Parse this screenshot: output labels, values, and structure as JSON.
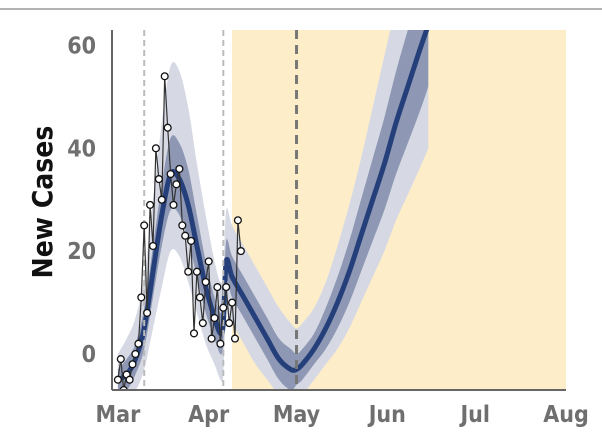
{
  "chart_data": {
    "type": "line",
    "title": "",
    "xlabel": "",
    "ylabel": "New Cases",
    "x_ticks": [
      "Mar",
      "Apr",
      "May",
      "Jun",
      "Jul",
      "Aug"
    ],
    "x_tick_dates": [
      "2020-03-01",
      "2020-04-01",
      "2020-05-01",
      "2020-06-01",
      "2020-07-01",
      "2020-08-01"
    ],
    "y_ticks": [
      0,
      20,
      40,
      60
    ],
    "xlim": [
      "2020-02-28",
      "2020-08-01"
    ],
    "ylim": [
      -7,
      63
    ],
    "grid": false,
    "colors": {
      "fit_line": "#243f7a",
      "inner_band": "#8e98b4",
      "outer_band": "#d6d9e4",
      "forecast_region": "#fdedc9",
      "observed_points": "#ffffff",
      "observed_line": "#333333",
      "event_lines": "#bbbbbb",
      "today_line": "#777777"
    },
    "forecast_region": {
      "start": "2020-04-09",
      "end": "2020-08-01"
    },
    "event_lines": [
      "2020-03-10",
      "2020-04-06"
    ],
    "today_line": "2020-05-01",
    "observed": {
      "x": [
        "2020-03-01",
        "2020-03-02",
        "2020-03-03",
        "2020-03-04",
        "2020-03-05",
        "2020-03-06",
        "2020-03-07",
        "2020-03-08",
        "2020-03-09",
        "2020-03-10",
        "2020-03-11",
        "2020-03-12",
        "2020-03-13",
        "2020-03-14",
        "2020-03-15",
        "2020-03-16",
        "2020-03-17",
        "2020-03-18",
        "2020-03-19",
        "2020-03-20",
        "2020-03-21",
        "2020-03-22",
        "2020-03-23",
        "2020-03-24",
        "2020-03-25",
        "2020-03-26",
        "2020-03-27",
        "2020-03-28",
        "2020-03-29",
        "2020-03-30",
        "2020-03-31",
        "2020-04-01",
        "2020-04-02",
        "2020-04-03",
        "2020-04-04",
        "2020-04-05",
        "2020-04-06",
        "2020-04-07",
        "2020-04-08",
        "2020-04-09",
        "2020-04-10",
        "2020-04-11",
        "2020-04-12"
      ],
      "y": [
        -5,
        -1,
        -7,
        -4,
        -5,
        -2,
        0,
        2,
        11,
        25,
        8,
        29,
        21,
        40,
        34,
        30,
        54,
        44,
        35,
        29,
        33,
        36,
        25,
        23,
        16,
        22,
        4,
        16,
        11,
        6,
        14,
        18,
        3,
        7,
        13,
        2,
        9,
        13,
        6,
        10,
        3,
        26,
        20
      ]
    },
    "series": [
      {
        "role": "fit",
        "x": [
          "2020-03-01",
          "2020-03-04",
          "2020-03-07",
          "2020-03-10",
          "2020-03-13",
          "2020-03-16",
          "2020-03-19",
          "2020-03-22",
          "2020-03-25",
          "2020-03-28",
          "2020-03-31",
          "2020-04-03",
          "2020-04-05",
          "2020-04-06",
          "2020-04-07",
          "2020-04-09",
          "2020-04-13",
          "2020-04-17",
          "2020-04-21",
          "2020-04-25",
          "2020-04-29",
          "2020-05-01",
          "2020-05-03",
          "2020-05-07",
          "2020-05-11",
          "2020-05-15",
          "2020-05-19",
          "2020-05-23",
          "2020-05-27",
          "2020-05-31",
          "2020-06-04",
          "2020-06-08",
          "2020-06-12",
          "2020-06-15"
        ],
        "y": [
          -5,
          -4,
          -1,
          5,
          16,
          27,
          35,
          34,
          29,
          21,
          13,
          7,
          4,
          6,
          18,
          15,
          11,
          7,
          3,
          -1,
          -3,
          -3,
          -2,
          1,
          5,
          10,
          16,
          23,
          30,
          37,
          45,
          52,
          59,
          64
        ],
        "inner_lo": [
          -7,
          -7,
          -4,
          1,
          11,
          21,
          28,
          27,
          22,
          15,
          8,
          3,
          0,
          2,
          14,
          11,
          7,
          3,
          -1,
          -5,
          -7,
          -6,
          -5,
          -2,
          1,
          5,
          10,
          16,
          22,
          28,
          35,
          41,
          47,
          52
        ],
        "inner_hi": [
          -3,
          -1,
          2,
          9,
          21,
          33,
          42,
          41,
          36,
          27,
          18,
          11,
          8,
          10,
          22,
          19,
          15,
          11,
          7,
          3,
          1,
          0,
          1,
          4,
          9,
          15,
          22,
          30,
          38,
          46,
          55,
          63,
          71,
          76
        ],
        "outer_lo": [
          -7,
          -7,
          -7,
          -3,
          5,
          13,
          20,
          19,
          14,
          8,
          2,
          -2,
          -5,
          -4,
          8,
          6,
          2,
          -2,
          -5,
          -8,
          -10,
          -9,
          -8,
          -5,
          -2,
          1,
          5,
          10,
          15,
          20,
          26,
          31,
          36,
          40
        ],
        "outer_hi": [
          0,
          3,
          7,
          15,
          30,
          45,
          56,
          55,
          48,
          37,
          27,
          18,
          14,
          16,
          28,
          25,
          21,
          17,
          13,
          9,
          6,
          5,
          6,
          9,
          14,
          21,
          29,
          38,
          48,
          58,
          68,
          78,
          88,
          92
        ]
      }
    ]
  }
}
